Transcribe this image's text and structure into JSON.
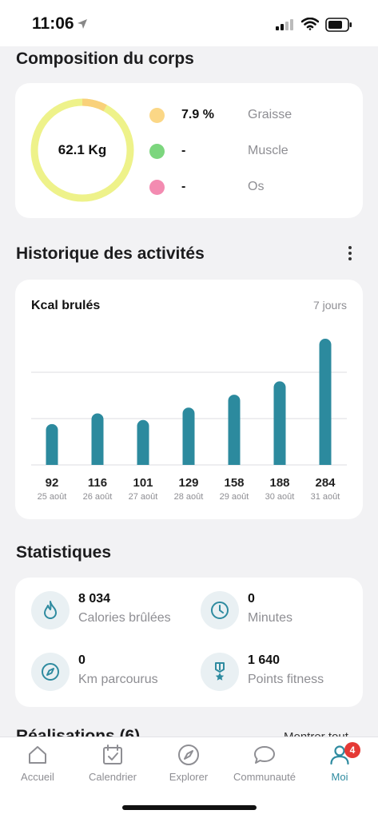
{
  "status_bar": {
    "time": "11:06"
  },
  "composition": {
    "title": "Composition du corps",
    "weight": "62.1 Kg",
    "fat_fraction": 0.079,
    "items": [
      {
        "value": "7.9 %",
        "label": "Graisse",
        "color": "#fbd786"
      },
      {
        "value": "-",
        "label": "Muscle",
        "color": "#7cd67e"
      },
      {
        "value": "-",
        "label": "Os",
        "color": "#f38bb1"
      }
    ],
    "ring_color": "#eef28a",
    "ring_fat_color": "#f9d17a"
  },
  "history": {
    "title": "Historique des activités",
    "chart_title": "Kcal  brulés",
    "period": "7 jours"
  },
  "chart_data": {
    "type": "bar",
    "title": "Kcal  brulés",
    "categories": [
      "25 août",
      "26 août",
      "27 août",
      "28 août",
      "29 août",
      "30 août",
      "31 août"
    ],
    "values": [
      92,
      116,
      101,
      129,
      158,
      188,
      284
    ],
    "ylim": [
      0,
      284
    ],
    "grid": true,
    "bar_color": "#2c8a9e"
  },
  "stats": {
    "title": "Statistiques",
    "items": [
      {
        "value": "8 034",
        "label": "Calories brûlées",
        "icon": "flame-icon"
      },
      {
        "value": "0",
        "label": "Minutes",
        "icon": "clock-icon"
      },
      {
        "value": "0",
        "label": "Km parcourus",
        "icon": "compass-icon"
      },
      {
        "value": "1 640",
        "label": "Points fitness",
        "icon": "medal-icon"
      }
    ]
  },
  "achievements": {
    "title": "Réalisations (6)",
    "link": "Montrer tout"
  },
  "tab_bar": {
    "items": [
      {
        "label": "Accueil",
        "icon": "home-icon"
      },
      {
        "label": "Calendrier",
        "icon": "calendar-icon"
      },
      {
        "label": "Explorer",
        "icon": "compass-icon"
      },
      {
        "label": "Communauté",
        "icon": "chat-icon"
      },
      {
        "label": "Moi",
        "icon": "user-icon",
        "badge": "4",
        "active": true
      }
    ]
  }
}
